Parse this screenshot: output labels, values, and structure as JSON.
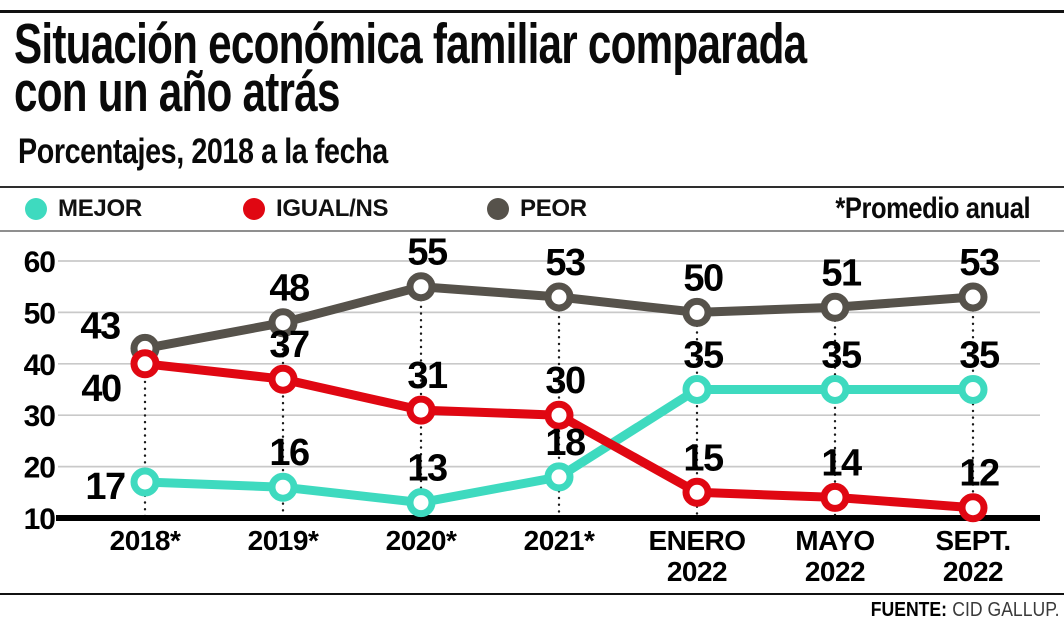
{
  "header": {
    "title_line1": "Situación económica familiar comparada",
    "title_line2": "con un año atrás",
    "subtitle": "Porcentajes, 2018 a la fecha"
  },
  "legend": {
    "items": [
      {
        "label": "MEJOR",
        "color": "#3edabf"
      },
      {
        "label": "IGUAL/NS",
        "color": "#e00712"
      },
      {
        "label": "PEOR",
        "color": "#56524b"
      }
    ],
    "note": "*Promedio anual"
  },
  "footer": {
    "source_label": "FUENTE:",
    "source_value": "CID GALLUP."
  },
  "chart_data": {
    "type": "line",
    "title": "Situación económica familiar comparada con un año atrás",
    "subtitle": "Porcentajes, 2018 a la fecha",
    "categories": [
      "2018*",
      "2019*",
      "2020*",
      "2021*",
      "ENERO\n2022",
      "MAYO\n2022",
      "SEPT.\n2022"
    ],
    "series": [
      {
        "name": "PEOR",
        "color": "#56524b",
        "values": [
          43,
          48,
          55,
          53,
          50,
          51,
          53
        ]
      },
      {
        "name": "MEJOR",
        "color": "#3edabf",
        "values": [
          17,
          16,
          13,
          18,
          35,
          35,
          35
        ]
      },
      {
        "name": "IGUAL/NS",
        "color": "#e00712",
        "values": [
          40,
          37,
          31,
          30,
          15,
          14,
          12
        ]
      }
    ],
    "xlabel": "",
    "ylabel": "",
    "ylim": [
      10,
      60
    ],
    "yticks": [
      10,
      20,
      30,
      40,
      50,
      60
    ],
    "grid": true,
    "legend_position": "top",
    "note": "*Promedio anual",
    "annotation": "Values shown as data labels at every point",
    "axis_color": "#000000",
    "gridline_color": "#c9c9c9",
    "guide_line_style": "dotted-vertical-black"
  }
}
